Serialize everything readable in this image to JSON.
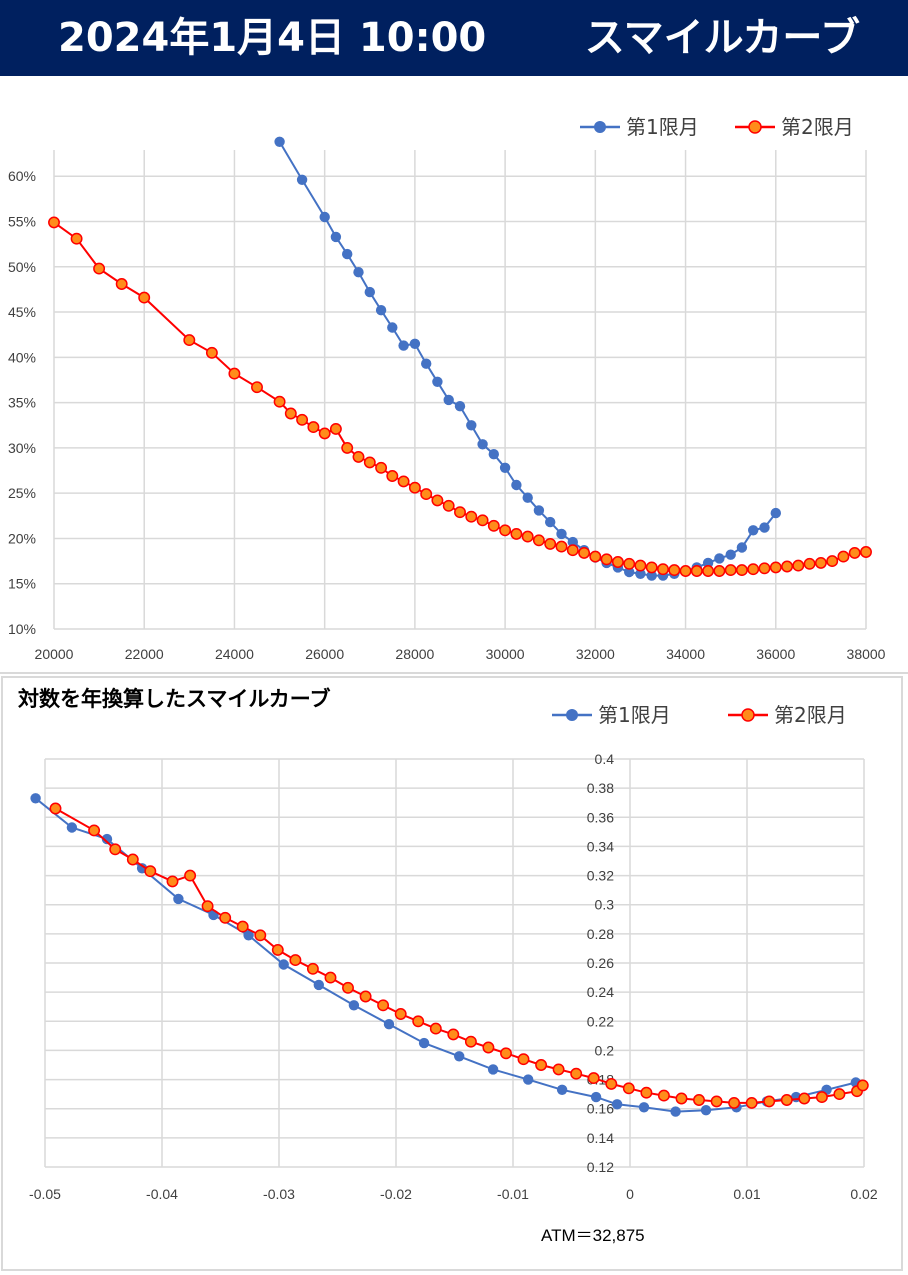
{
  "header": {
    "date": "2024年1月4日 10:00",
    "title": "スマイルカーブ",
    "bg_color": "#00205f"
  },
  "chart_data": [
    {
      "type": "line",
      "title": "",
      "xlim": [
        20000,
        38000
      ],
      "ylim": [
        0.1,
        0.64
      ],
      "x_ticks": [
        "20000",
        "22000",
        "24000",
        "26000",
        "28000",
        "30000",
        "32000",
        "34000",
        "36000",
        "38000"
      ],
      "y_ticks": [
        "10%",
        "15%",
        "20%",
        "25%",
        "30%",
        "35%",
        "40%",
        "45%",
        "50%",
        "55%",
        "60%"
      ],
      "grid": true,
      "legend": "top-right",
      "series": [
        {
          "name": "第1限月",
          "color": "#4472c4",
          "points": [
            [
              25000,
              0.638
            ],
            [
              25500,
              0.596
            ],
            [
              26000,
              0.555
            ],
            [
              26250,
              0.533
            ],
            [
              26500,
              0.514
            ],
            [
              26750,
              0.494
            ],
            [
              27000,
              0.472
            ],
            [
              27250,
              0.452
            ],
            [
              27500,
              0.433
            ],
            [
              27750,
              0.413
            ],
            [
              28000,
              0.415
            ],
            [
              28250,
              0.393
            ],
            [
              28500,
              0.373
            ],
            [
              28750,
              0.353
            ],
            [
              29000,
              0.346
            ],
            [
              29250,
              0.325
            ],
            [
              29500,
              0.304
            ],
            [
              29750,
              0.293
            ],
            [
              30000,
              0.278
            ],
            [
              30250,
              0.259
            ],
            [
              30500,
              0.245
            ],
            [
              30750,
              0.231
            ],
            [
              31000,
              0.218
            ],
            [
              31250,
              0.205
            ],
            [
              31500,
              0.196
            ],
            [
              31750,
              0.187
            ],
            [
              32000,
              0.179
            ],
            [
              32250,
              0.173
            ],
            [
              32500,
              0.168
            ],
            [
              32750,
              0.163
            ],
            [
              33000,
              0.161
            ],
            [
              33250,
              0.159
            ],
            [
              33500,
              0.159
            ],
            [
              33750,
              0.161
            ],
            [
              34000,
              0.164
            ],
            [
              34250,
              0.168
            ],
            [
              34500,
              0.173
            ],
            [
              34750,
              0.178
            ],
            [
              35000,
              0.182
            ],
            [
              35250,
              0.19
            ],
            [
              35500,
              0.209
            ],
            [
              35750,
              0.212
            ],
            [
              36000,
              0.228
            ]
          ]
        },
        {
          "name": "第2限月",
          "color": "#ff0000",
          "marker_fill": "#ff8c1a",
          "points": [
            [
              20000,
              0.549
            ],
            [
              20500,
              0.531
            ],
            [
              21000,
              0.498
            ],
            [
              21500,
              0.481
            ],
            [
              22000,
              0.466
            ],
            [
              23000,
              0.419
            ],
            [
              23500,
              0.405
            ],
            [
              24000,
              0.382
            ],
            [
              24500,
              0.367
            ],
            [
              25000,
              0.351
            ],
            [
              25250,
              0.338
            ],
            [
              25500,
              0.331
            ],
            [
              25750,
              0.323
            ],
            [
              26000,
              0.316
            ],
            [
              26250,
              0.321
            ],
            [
              26500,
              0.3
            ],
            [
              26750,
              0.29
            ],
            [
              27000,
              0.284
            ],
            [
              27250,
              0.278
            ],
            [
              27500,
              0.269
            ],
            [
              27750,
              0.263
            ],
            [
              28000,
              0.256
            ],
            [
              28250,
              0.249
            ],
            [
              28500,
              0.242
            ],
            [
              28750,
              0.236
            ],
            [
              29000,
              0.229
            ],
            [
              29250,
              0.224
            ],
            [
              29500,
              0.22
            ],
            [
              29750,
              0.214
            ],
            [
              30000,
              0.209
            ],
            [
              30250,
              0.205
            ],
            [
              30500,
              0.202
            ],
            [
              30750,
              0.198
            ],
            [
              31000,
              0.194
            ],
            [
              31250,
              0.191
            ],
            [
              31500,
              0.187
            ],
            [
              31750,
              0.184
            ],
            [
              32000,
              0.18
            ],
            [
              32250,
              0.177
            ],
            [
              32500,
              0.174
            ],
            [
              32750,
              0.172
            ],
            [
              33000,
              0.17
            ],
            [
              33250,
              0.168
            ],
            [
              33500,
              0.166
            ],
            [
              33750,
              0.165
            ],
            [
              34000,
              0.164
            ],
            [
              34250,
              0.164
            ],
            [
              34500,
              0.164
            ],
            [
              34750,
              0.164
            ],
            [
              35000,
              0.165
            ],
            [
              35250,
              0.165
            ],
            [
              35500,
              0.166
            ],
            [
              35750,
              0.167
            ],
            [
              36000,
              0.168
            ],
            [
              36250,
              0.169
            ],
            [
              36500,
              0.17
            ],
            [
              36750,
              0.172
            ],
            [
              37000,
              0.173
            ],
            [
              37250,
              0.175
            ],
            [
              37500,
              0.18
            ],
            [
              37750,
              0.184
            ],
            [
              38000,
              0.185
            ]
          ]
        }
      ]
    },
    {
      "type": "line",
      "title": "対数を年換算したスマイルカーブ",
      "xlim": [
        -0.05,
        0.02
      ],
      "ylim": [
        0.12,
        0.4
      ],
      "x_ticks": [
        "-0.05",
        "-0.04",
        "-0.03",
        "-0.02",
        "-0.01",
        "0",
        "0.01",
        "0.02"
      ],
      "y_ticks": [
        "0.12",
        "0.14",
        "0.16",
        "0.18",
        "0.2",
        "0.22",
        "0.24",
        "0.26",
        "0.28",
        "0.3",
        "0.32",
        "0.34",
        "0.36",
        "0.38",
        "0.4"
      ],
      "grid": true,
      "legend": "top-right",
      "annotation": "ATM＝32,875",
      "series": [
        {
          "name": "第1限月",
          "color": "#4472c4",
          "points": [
            [
              -0.0508,
              0.373
            ],
            [
              -0.0477,
              0.353
            ],
            [
              -0.0447,
              0.345
            ],
            [
              -0.0417,
              0.325
            ],
            [
              -0.0386,
              0.304
            ],
            [
              -0.0356,
              0.293
            ],
            [
              -0.0326,
              0.279
            ],
            [
              -0.0296,
              0.259
            ],
            [
              -0.0266,
              0.245
            ],
            [
              -0.0236,
              0.231
            ],
            [
              -0.0206,
              0.218
            ],
            [
              -0.0176,
              0.205
            ],
            [
              -0.0146,
              0.196
            ],
            [
              -0.0117,
              0.187
            ],
            [
              -0.0087,
              0.18
            ],
            [
              -0.0058,
              0.173
            ],
            [
              -0.0029,
              0.168
            ],
            [
              -0.0011,
              0.163
            ],
            [
              0.0012,
              0.161
            ],
            [
              0.0039,
              0.158
            ],
            [
              0.0065,
              0.159
            ],
            [
              0.0091,
              0.161
            ],
            [
              0.0117,
              0.165
            ],
            [
              0.0142,
              0.168
            ],
            [
              0.0168,
              0.173
            ],
            [
              0.0193,
              0.178
            ]
          ]
        },
        {
          "name": "第2限月",
          "color": "#ff0000",
          "marker_fill": "#ff8c1a",
          "points": [
            [
              -0.0491,
              0.366
            ],
            [
              -0.0458,
              0.351
            ],
            [
              -0.044,
              0.338
            ],
            [
              -0.0425,
              0.331
            ],
            [
              -0.041,
              0.323
            ],
            [
              -0.0391,
              0.316
            ],
            [
              -0.0376,
              0.32
            ],
            [
              -0.0361,
              0.299
            ],
            [
              -0.0346,
              0.291
            ],
            [
              -0.0331,
              0.285
            ],
            [
              -0.0316,
              0.279
            ],
            [
              -0.0301,
              0.269
            ],
            [
              -0.0286,
              0.262
            ],
            [
              -0.0271,
              0.256
            ],
            [
              -0.0256,
              0.25
            ],
            [
              -0.0241,
              0.243
            ],
            [
              -0.0226,
              0.237
            ],
            [
              -0.0211,
              0.231
            ],
            [
              -0.0196,
              0.225
            ],
            [
              -0.0181,
              0.22
            ],
            [
              -0.0166,
              0.215
            ],
            [
              -0.0151,
              0.211
            ],
            [
              -0.0136,
              0.206
            ],
            [
              -0.0121,
              0.202
            ],
            [
              -0.0106,
              0.198
            ],
            [
              -0.0091,
              0.194
            ],
            [
              -0.0076,
              0.19
            ],
            [
              -0.0061,
              0.187
            ],
            [
              -0.0046,
              0.184
            ],
            [
              -0.0031,
              0.181
            ],
            [
              -0.0016,
              0.177
            ],
            [
              -0.0001,
              0.174
            ],
            [
              0.0014,
              0.171
            ],
            [
              0.0029,
              0.169
            ],
            [
              0.0044,
              0.167
            ],
            [
              0.0059,
              0.166
            ],
            [
              0.0074,
              0.165
            ],
            [
              0.0089,
              0.164
            ],
            [
              0.0104,
              0.164
            ],
            [
              0.0119,
              0.165
            ],
            [
              0.0134,
              0.166
            ],
            [
              0.0149,
              0.167
            ],
            [
              0.0164,
              0.168
            ],
            [
              0.0179,
              0.17
            ],
            [
              0.0194,
              0.172
            ],
            [
              0.0199,
              0.176
            ]
          ]
        }
      ]
    }
  ]
}
